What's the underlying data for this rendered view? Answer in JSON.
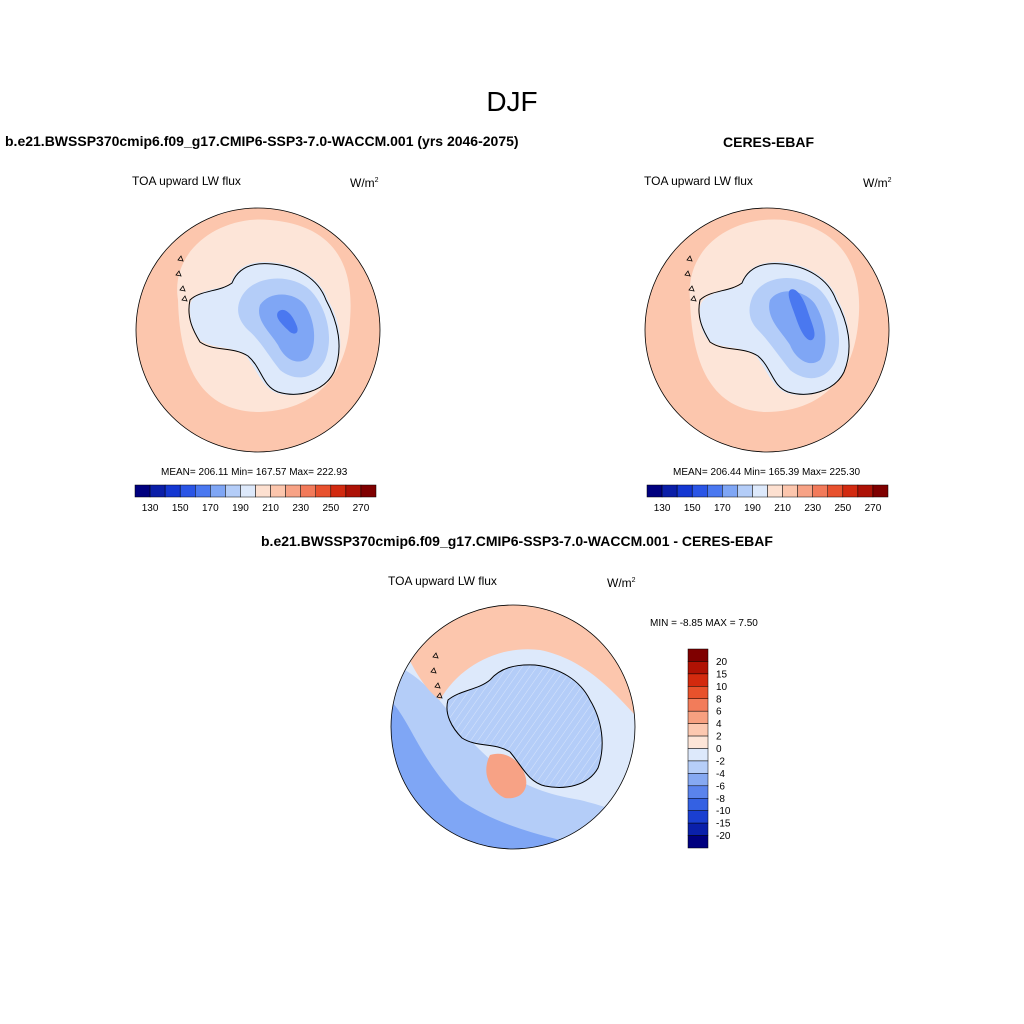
{
  "title": "DJF",
  "panels": [
    {
      "header": "b.e21.BWSSP370cmip6.f09_g17.CMIP6-SSP3-7.0-WACCM.001 (yrs 2046-2075)",
      "variable": "TOA upward LW flux",
      "units": "W/m",
      "units_exp": "2",
      "stats": "MEAN= 206.11   Min= 167.57   Max= 222.93"
    },
    {
      "header": "CERES-EBAF",
      "variable": "TOA upward LW flux",
      "units": "W/m",
      "units_exp": "2",
      "stats": "MEAN= 206.44   Min= 165.39   Max= 225.30"
    },
    {
      "header": "b.e21.BWSSP370cmip6.f09_g17.CMIP6-SSP3-7.0-WACCM.001 - CERES-EBAF",
      "variable": "TOA upward LW flux",
      "units": "W/m",
      "units_exp": "2",
      "stats": "MIN =  -8.85 MAX =   7.50"
    }
  ],
  "colorbar_h": {
    "colors": [
      "#00007f",
      "#0a1ea8",
      "#1437d2",
      "#2a55e6",
      "#4a78f0",
      "#7fa6f5",
      "#b4cdf8",
      "#dde9fb",
      "#fde0d0",
      "#fcc6ad",
      "#f7a285",
      "#f27a5a",
      "#e8512e",
      "#d22a10",
      "#ad1206",
      "#7f0000"
    ],
    "labels": [
      "130",
      "150",
      "170",
      "190",
      "210",
      "230",
      "250",
      "270"
    ]
  },
  "colorbar_v": {
    "colors": [
      "#7f0000",
      "#b01204",
      "#d32a0e",
      "#e8522c",
      "#f27c5a",
      "#f7a080",
      "#fcc8b0",
      "#fde5d8",
      "#dde9fb",
      "#b6cef8",
      "#86a9f2",
      "#5a83ec",
      "#3461e3",
      "#1a3fd0",
      "#0a20aa",
      "#00007f"
    ],
    "labels": [
      "20",
      "15",
      "10",
      "8",
      "6",
      "4",
      "2",
      "0",
      "-2",
      "-4",
      "-6",
      "-8",
      "-10",
      "-15",
      "-20"
    ]
  },
  "map_colors": {
    "warm_light": "#fcc6ad",
    "warm_pale": "#fde5d8",
    "warm_mid": "#f7a285",
    "cool_pale": "#dde9fb",
    "cool_light": "#b4cdf8",
    "cool_mid": "#7fa6f5",
    "cool_dark": "#4a78f0",
    "cool_deep": "#2a55e6"
  }
}
